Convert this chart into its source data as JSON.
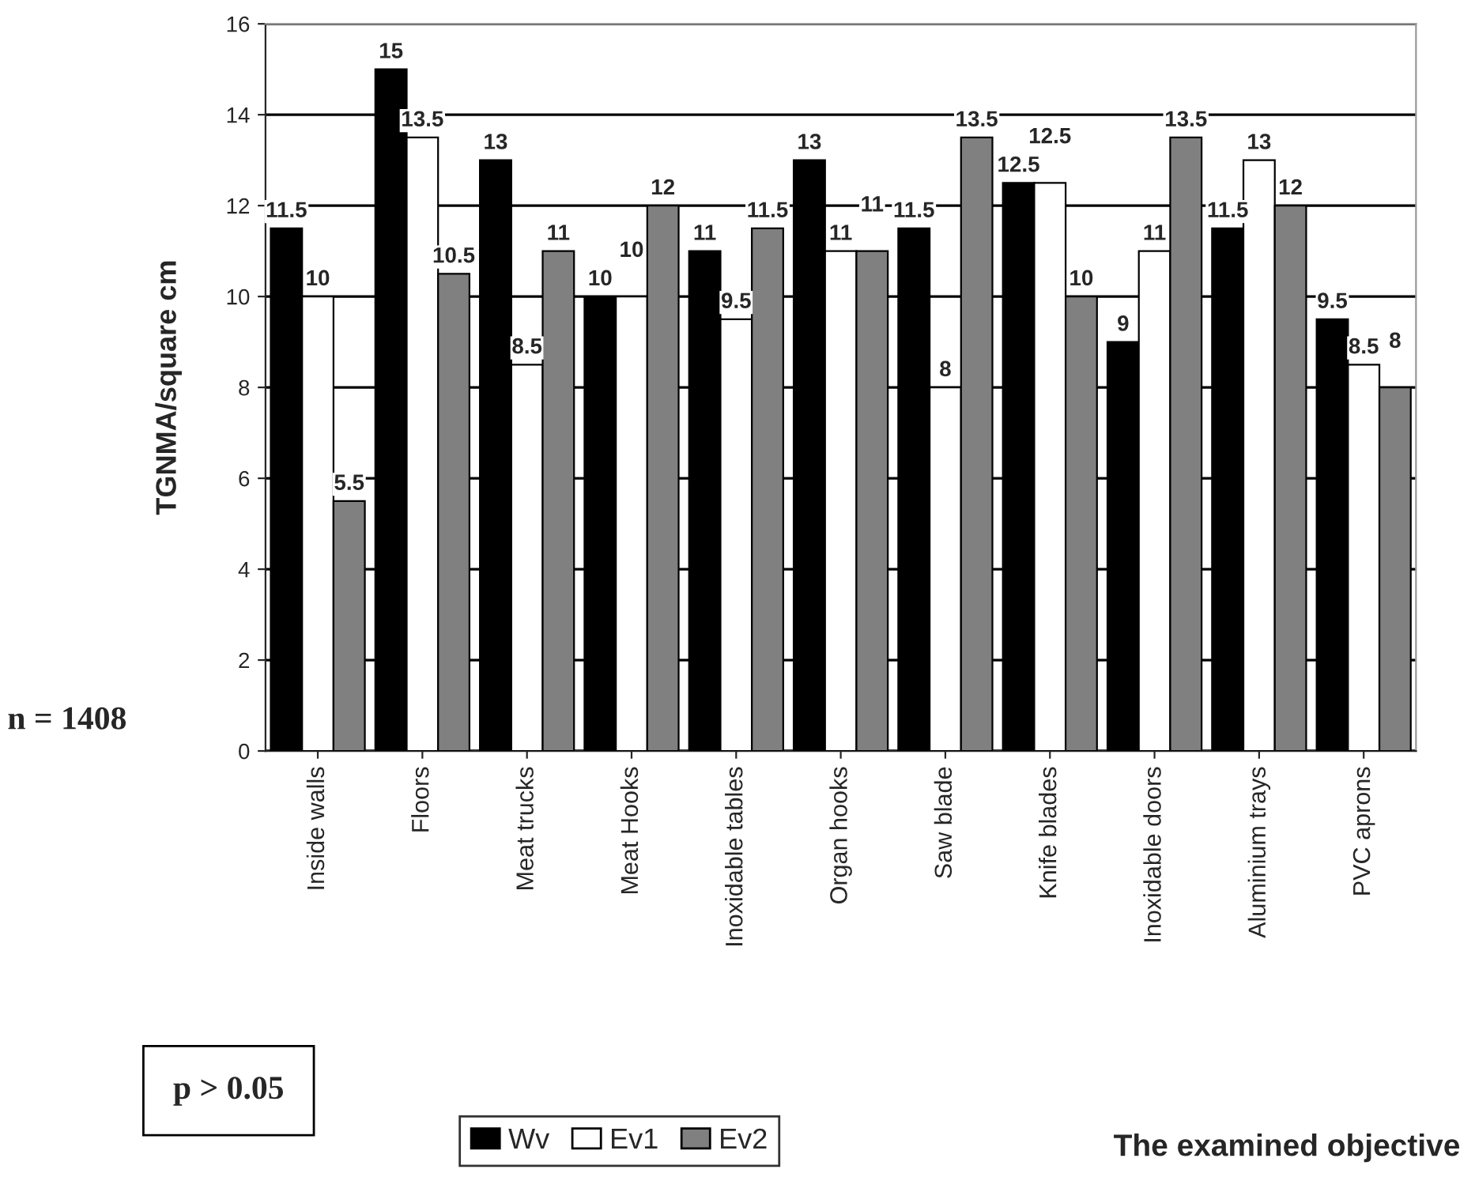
{
  "chart_data": {
    "type": "bar",
    "ylabel": "TGNMA/square cm",
    "categories": [
      "Inside walls",
      "Floors",
      "Meat trucks",
      "Meat Hooks",
      "Inoxidable tables",
      "Organ hooks",
      "Saw blade",
      "Knife blades",
      "Inoxidable doors",
      "Aluminium trays",
      "PVC aprons"
    ],
    "series": [
      {
        "name": "Wv",
        "color": "#000000",
        "values": [
          11.5,
          15,
          13,
          10,
          11,
          13,
          11.5,
          12.5,
          9,
          11.5,
          9.5
        ]
      },
      {
        "name": "Ev1",
        "color": "#ffffff",
        "values": [
          10,
          13.5,
          8.5,
          10,
          9.5,
          11,
          8,
          12.5,
          11,
          13,
          8.5
        ]
      },
      {
        "name": "Ev2",
        "color": "#808080",
        "values": [
          5.5,
          10.5,
          11,
          12,
          11.5,
          11,
          13.5,
          10,
          13.5,
          12,
          8
        ]
      }
    ],
    "ylim": [
      0,
      16
    ],
    "yticks": [
      0,
      2,
      4,
      6,
      8,
      10,
      12,
      14,
      16
    ],
    "grid": "y",
    "data_labels": true,
    "legend": "bottom",
    "annotations": [
      "n = 1408",
      "p > 0.05",
      "The examined objective"
    ]
  }
}
